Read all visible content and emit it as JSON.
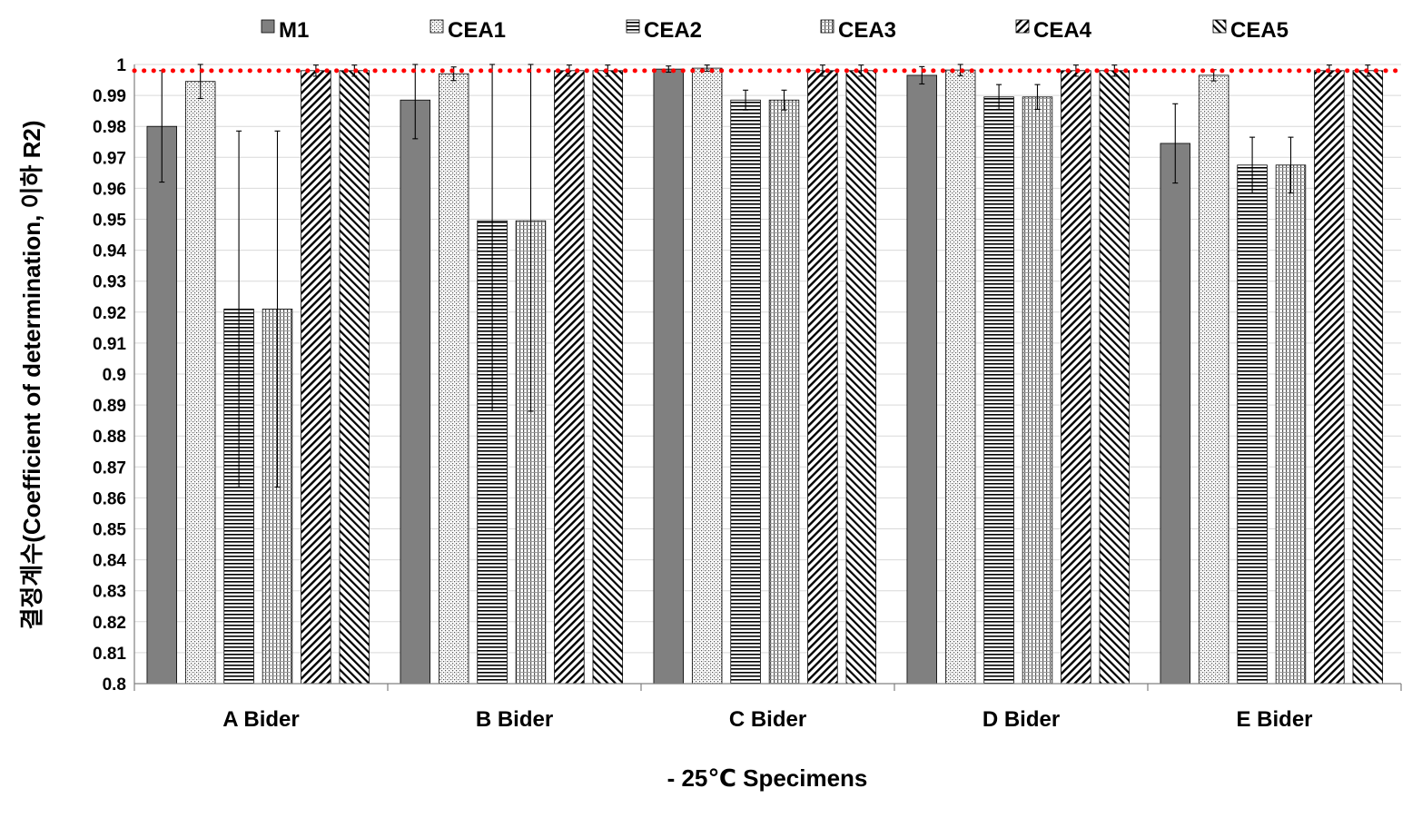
{
  "chart_data": {
    "type": "bar",
    "title": "",
    "xlabel": "- 25℃ Specimens",
    "ylabel": "결정계수(Coefficient of determination, 이하 R2)",
    "ylim": [
      0.8,
      1.0
    ],
    "ytick_step": 0.01,
    "grid": true,
    "legend_position": "top",
    "categories": [
      "A Bider",
      "B Bider",
      "C Bider",
      "D Bider",
      "E Bider"
    ],
    "series": [
      {
        "name": "M1",
        "pattern": "solid",
        "values": [
          0.98,
          0.9885,
          0.9985,
          0.9965,
          0.9745
        ],
        "errors": [
          0.018,
          0.0125,
          0.001,
          0.0028,
          0.0128
        ]
      },
      {
        "name": "CEA1",
        "pattern": "dots",
        "values": [
          0.9945,
          0.997,
          0.9988,
          0.9982,
          0.9965
        ],
        "errors": [
          0.0055,
          0.0022,
          0.001,
          0.0018,
          0.0018
        ]
      },
      {
        "name": "CEA2",
        "pattern": "hlines",
        "values": [
          0.921,
          0.9495,
          0.9885,
          0.9895,
          0.9675
        ],
        "errors": [
          0.0575,
          0.0615,
          0.0032,
          0.004,
          0.009
        ]
      },
      {
        "name": "CEA3",
        "pattern": "grid",
        "values": [
          0.921,
          0.9495,
          0.9885,
          0.9895,
          0.9675
        ],
        "errors": [
          0.0575,
          0.0615,
          0.0032,
          0.004,
          0.009
        ]
      },
      {
        "name": "CEA4",
        "pattern": "bdiag",
        "values": [
          0.998,
          0.998,
          0.998,
          0.998,
          0.998
        ],
        "errors": [
          0.0018,
          0.0018,
          0.0018,
          0.0018,
          0.0018
        ]
      },
      {
        "name": "CEA5",
        "pattern": "fdiag",
        "values": [
          0.998,
          0.998,
          0.998,
          0.998,
          0.998
        ],
        "errors": [
          0.0018,
          0.0018,
          0.0018,
          0.0018,
          0.0018
        ]
      }
    ],
    "reference_line": {
      "value": 0.998,
      "color": "#ff0000",
      "style": "dotted"
    },
    "colors": {
      "m1_fill": "#808080",
      "bar_stroke": "#000000",
      "grid": "#d9d9d9",
      "axis": "#808080"
    }
  }
}
